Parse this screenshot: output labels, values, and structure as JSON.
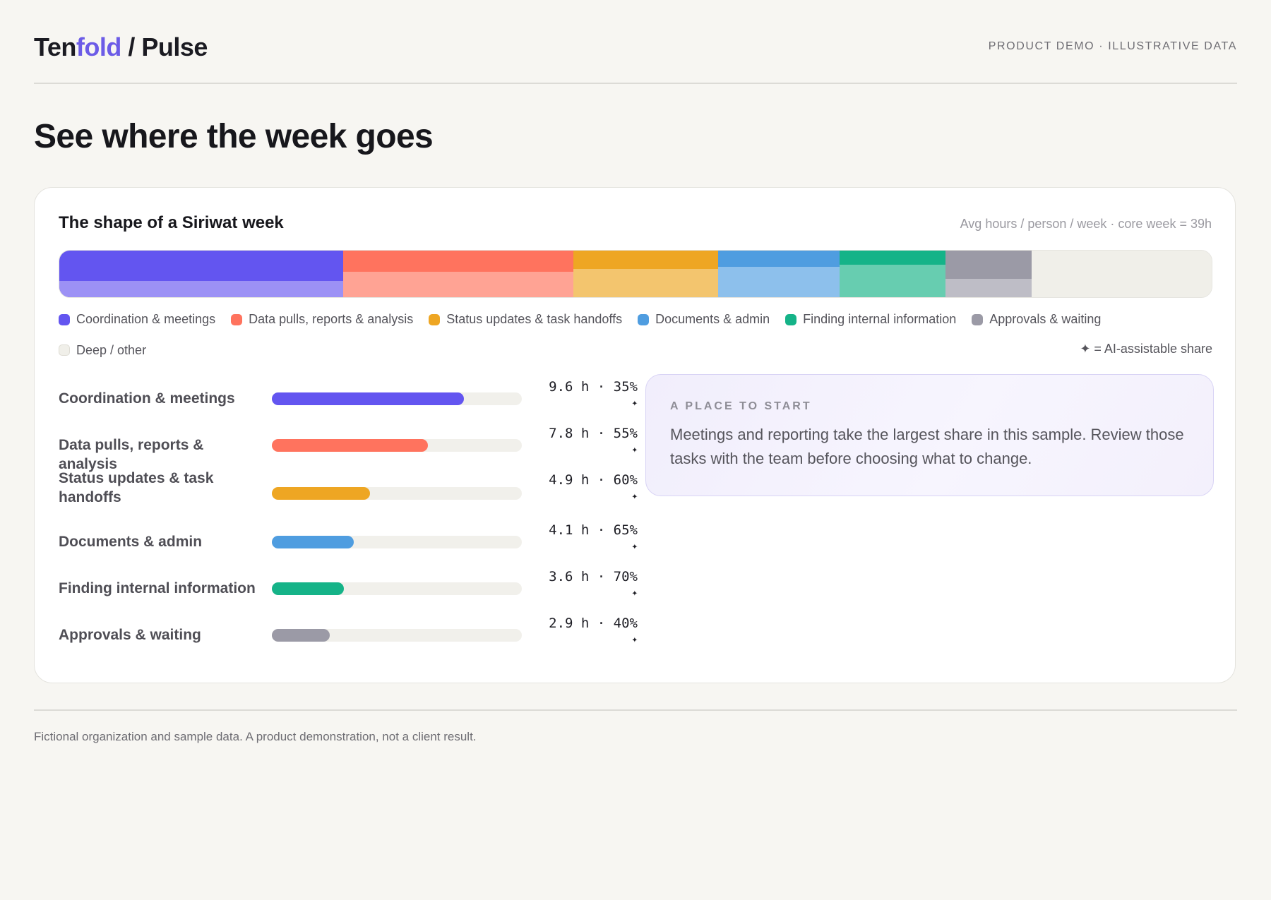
{
  "brand": {
    "name_start": "Ten",
    "name_accent": "fold",
    "product": " / Pulse"
  },
  "demo_tag": "PRODUCT DEMO · ILLUSTRATIVE DATA",
  "page_title": "See where the week goes",
  "card": {
    "title": "The shape of a Siriwat week",
    "meta": "Avg hours / person / week · core week = 39h"
  },
  "colors": {
    "coordination": "#6355f0",
    "coordination_light": "#9c91f5",
    "data": "#ff735e",
    "data_light": "#ffa394",
    "status": "#eea623",
    "status_light": "#f3c56e",
    "documents": "#4f9de0",
    "documents_light": "#8dc0ec",
    "finding": "#15b388",
    "finding_light": "#67cdb0",
    "approvals": "#9b9aa6",
    "approvals_light": "#bebdc6",
    "deep": "#f0efe9",
    "track": "#f1f0eb"
  },
  "legend": {
    "items": [
      {
        "label": "Coordination & meetings",
        "color": "#6355f0"
      },
      {
        "label": "Data pulls, reports & analysis",
        "color": "#ff735e"
      },
      {
        "label": "Status updates & task handoffs",
        "color": "#eea623"
      },
      {
        "label": "Documents & admin",
        "color": "#4f9de0"
      },
      {
        "label": "Finding internal information",
        "color": "#15b388"
      },
      {
        "label": "Approvals & waiting",
        "color": "#9b9aa6"
      }
    ],
    "deep_label": "Deep / other",
    "ai_key": "✦ = AI-assistable share"
  },
  "chart_data": {
    "type": "bar",
    "unit": "h",
    "core_week_hours": 39,
    "categories": [
      "Coordination & meetings",
      "Data pulls, reports & analysis",
      "Status updates & task handoffs",
      "Documents & admin",
      "Finding internal information",
      "Approvals & waiting"
    ],
    "series": [
      {
        "name": "hours",
        "values": [
          9.6,
          7.8,
          4.9,
          4.1,
          3.6,
          2.9
        ]
      },
      {
        "name": "AI-assistable share (%)",
        "values": [
          35,
          55,
          60,
          65,
          70,
          40
        ]
      }
    ]
  },
  "rows": [
    {
      "label": "Coordination & meetings",
      "value": "9.6 h · 35%",
      "star": "✦"
    },
    {
      "label": "Data pulls, reports & analysis",
      "value": "7.8 h · 55%",
      "star": "✦"
    },
    {
      "label": "Status updates & task handoffs",
      "value": "4.9 h · 60%",
      "star": "✦"
    },
    {
      "label": "Documents & admin",
      "value": "4.1 h · 65%",
      "star": "✦"
    },
    {
      "label": "Finding internal information",
      "value": "3.6 h · 70%",
      "star": "✦"
    },
    {
      "label": "Approvals & waiting",
      "value": "2.9 h · 40%",
      "star": "✦"
    }
  ],
  "callout": {
    "kicker": "A PLACE TO START",
    "body": "Meetings and reporting take the largest share in this sample. Review those tasks with the team before choosing what to change."
  },
  "footnote": "Fictional organization and sample data. A product demonstration, not a client result."
}
